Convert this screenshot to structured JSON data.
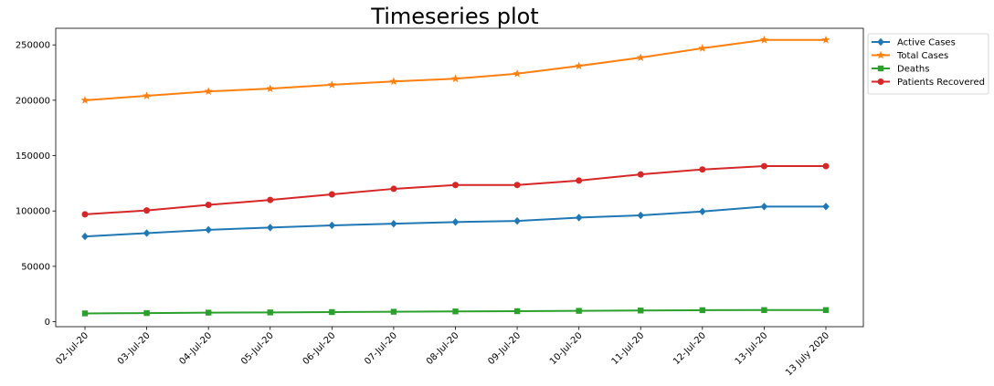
{
  "chart_data": {
    "type": "line",
    "title": "Timeseries plot",
    "xlabel": "",
    "ylabel": "",
    "categories": [
      "02-Jul-20",
      "03-Jul-20",
      "04-Jul-20",
      "05-Jul-20",
      "06-Jul-20",
      "07-Jul-20",
      "08-Jul-20",
      "09-Jul-20",
      "10-Jul-20",
      "11-Jul-20",
      "12-Jul-20",
      "13-Jul-20",
      "13 July 2020"
    ],
    "ylim": [
      -4500,
      265000
    ],
    "yticks": [
      0,
      50000,
      100000,
      150000,
      200000,
      250000
    ],
    "grid": false,
    "legend_position": "outside-top-right",
    "series": [
      {
        "name": "Active Cases",
        "color": "#1f77b4",
        "marker": "diamond",
        "values": [
          77000,
          80000,
          83000,
          85000,
          87000,
          88500,
          90000,
          91000,
          94000,
          96000,
          99500,
          104000,
          104000
        ]
      },
      {
        "name": "Total Cases",
        "color": "#ff7f0e",
        "marker": "star",
        "values": [
          200000,
          204000,
          208000,
          210500,
          214000,
          217000,
          219500,
          224000,
          231000,
          238500,
          247000,
          254500,
          254500
        ]
      },
      {
        "name": "Deaths",
        "color": "#2ca02c",
        "marker": "square",
        "values": [
          7500,
          7800,
          8200,
          8400,
          8700,
          9000,
          9300,
          9500,
          9800,
          10100,
          10400,
          10500,
          10500
        ]
      },
      {
        "name": "Patients Recovered",
        "color": "#d62728",
        "marker": "circle",
        "values": [
          97000,
          100500,
          105500,
          110000,
          115000,
          120000,
          123500,
          123500,
          127500,
          133000,
          137500,
          140500,
          140500
        ]
      }
    ]
  }
}
